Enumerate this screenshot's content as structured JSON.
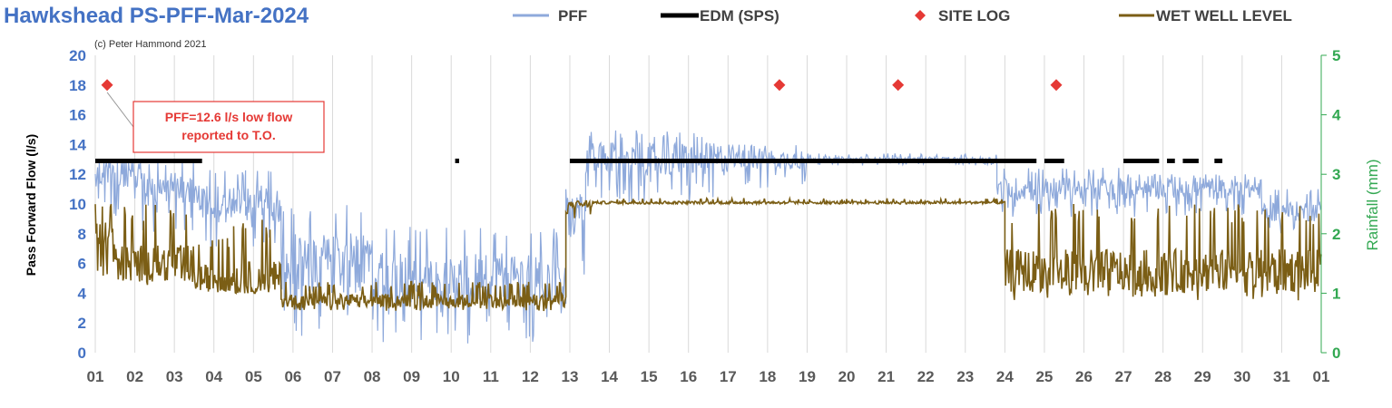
{
  "chart_data": {
    "type": "line",
    "title": "Hawkshead PS-PFF-Mar-2024",
    "copyright": "(c) Peter Hammond 2021",
    "ylabel": "Pass Forward Flow (l/s)",
    "y2label": "Rainfall (mm)",
    "ylim": [
      0,
      20
    ],
    "y2lim": [
      0,
      5
    ],
    "yticks": [
      "0",
      "2",
      "4",
      "6",
      "8",
      "10",
      "12",
      "14",
      "16",
      "18",
      "20"
    ],
    "y2ticks": [
      "0",
      "1",
      "2",
      "3",
      "4",
      "5"
    ],
    "xticks": [
      "01",
      "02",
      "03",
      "04",
      "05",
      "06",
      "07",
      "08",
      "09",
      "10",
      "11",
      "12",
      "13",
      "14",
      "15",
      "16",
      "17",
      "18",
      "19",
      "20",
      "21",
      "22",
      "23",
      "24",
      "25",
      "26",
      "27",
      "28",
      "29",
      "30",
      "31",
      "01"
    ],
    "xlim_days": [
      1,
      32
    ],
    "grid": "vertical",
    "legend_position": "top",
    "colors": {
      "pff": "#8EA9DB",
      "edm": "#000000",
      "site_log": "#E53935",
      "wet_well": "#7B5E15",
      "title": "#4472C4",
      "y2": "#33A852"
    },
    "legend": [
      {
        "key": "pff",
        "label": "PFF"
      },
      {
        "key": "edm",
        "label": "EDM (SPS)"
      },
      {
        "key": "site_log",
        "label": "SITE LOG"
      },
      {
        "key": "wet_well",
        "label": "WET WELL LEVEL"
      }
    ],
    "series": [
      {
        "name": "PFF",
        "key": "pff",
        "segments": [
          {
            "start": 1.0,
            "end": 2.2,
            "mean": 12.0,
            "low": 9.0,
            "high": 13.0
          },
          {
            "start": 2.2,
            "end": 3.6,
            "mean": 11.0,
            "low": 8.0,
            "high": 13.0
          },
          {
            "start": 3.6,
            "end": 4.8,
            "mean": 10.0,
            "low": 7.0,
            "high": 12.5
          },
          {
            "start": 4.8,
            "end": 5.7,
            "mean": 10.0,
            "low": 7.0,
            "high": 12.5
          },
          {
            "start": 5.7,
            "end": 8.0,
            "mean": 6.0,
            "low": 1.0,
            "high": 10.0
          },
          {
            "start": 8.0,
            "end": 12.9,
            "mean": 5.0,
            "low": 0.5,
            "high": 8.5
          },
          {
            "start": 12.9,
            "end": 13.4,
            "mean": 9.0,
            "low": 4.0,
            "high": 11.0
          },
          {
            "start": 13.4,
            "end": 17.0,
            "mean": 13.0,
            "low": 10.0,
            "high": 15.0
          },
          {
            "start": 17.0,
            "end": 19.0,
            "mean": 13.0,
            "low": 11.0,
            "high": 14.0
          },
          {
            "start": 19.0,
            "end": 23.8,
            "mean": 13.0,
            "low": 12.6,
            "high": 13.4
          },
          {
            "start": 23.8,
            "end": 27.0,
            "mean": 11.0,
            "low": 9.0,
            "high": 12.5
          },
          {
            "start": 27.0,
            "end": 30.5,
            "mean": 11.0,
            "low": 9.0,
            "high": 12.0
          },
          {
            "start": 30.5,
            "end": 32.0,
            "mean": 9.5,
            "low": 8.0,
            "high": 11.0
          }
        ]
      },
      {
        "name": "EDM (SPS)",
        "key": "edm",
        "value": 12.9,
        "spans": [
          [
            1.0,
            3.7
          ],
          [
            10.1,
            10.2
          ],
          [
            13.0,
            24.8
          ],
          [
            25.0,
            25.5
          ],
          [
            27.0,
            27.9
          ],
          [
            28.1,
            28.3
          ],
          [
            28.5,
            28.9
          ],
          [
            29.3,
            29.5
          ]
        ]
      },
      {
        "name": "SITE LOG",
        "key": "site_log",
        "points": [
          {
            "x": 1.3,
            "y": 18
          },
          {
            "x": 18.3,
            "y": 18
          },
          {
            "x": 21.3,
            "y": 18
          },
          {
            "x": 25.3,
            "y": 18
          }
        ]
      },
      {
        "name": "WET WELL LEVEL",
        "key": "wet_well",
        "segments": [
          {
            "start": 1.0,
            "end": 1.5,
            "mean": 8.0,
            "low": 5.0,
            "high": 10.2
          },
          {
            "start": 1.5,
            "end": 3.5,
            "mean": 6.0,
            "low": 4.5,
            "high": 10.0
          },
          {
            "start": 3.5,
            "end": 4.5,
            "mean": 5.0,
            "low": 4.0,
            "high": 8.0
          },
          {
            "start": 4.5,
            "end": 5.7,
            "mean": 5.0,
            "low": 4.0,
            "high": 9.0
          },
          {
            "start": 5.7,
            "end": 12.9,
            "mean": 3.5,
            "low": 2.8,
            "high": 4.8
          },
          {
            "start": 12.9,
            "end": 13.6,
            "mean": 10.0,
            "low": 9.0,
            "high": 10.2
          },
          {
            "start": 13.6,
            "end": 24.0,
            "mean": 10.1,
            "low": 10.0,
            "high": 10.4
          },
          {
            "start": 24.0,
            "end": 32.0,
            "mean": 5.5,
            "low": 3.5,
            "high": 10.0
          }
        ]
      }
    ],
    "annotation": {
      "lines": [
        "PFF=12.6 l/s low flow",
        "reported to T.O."
      ],
      "x": 1.3,
      "y": 18
    }
  }
}
